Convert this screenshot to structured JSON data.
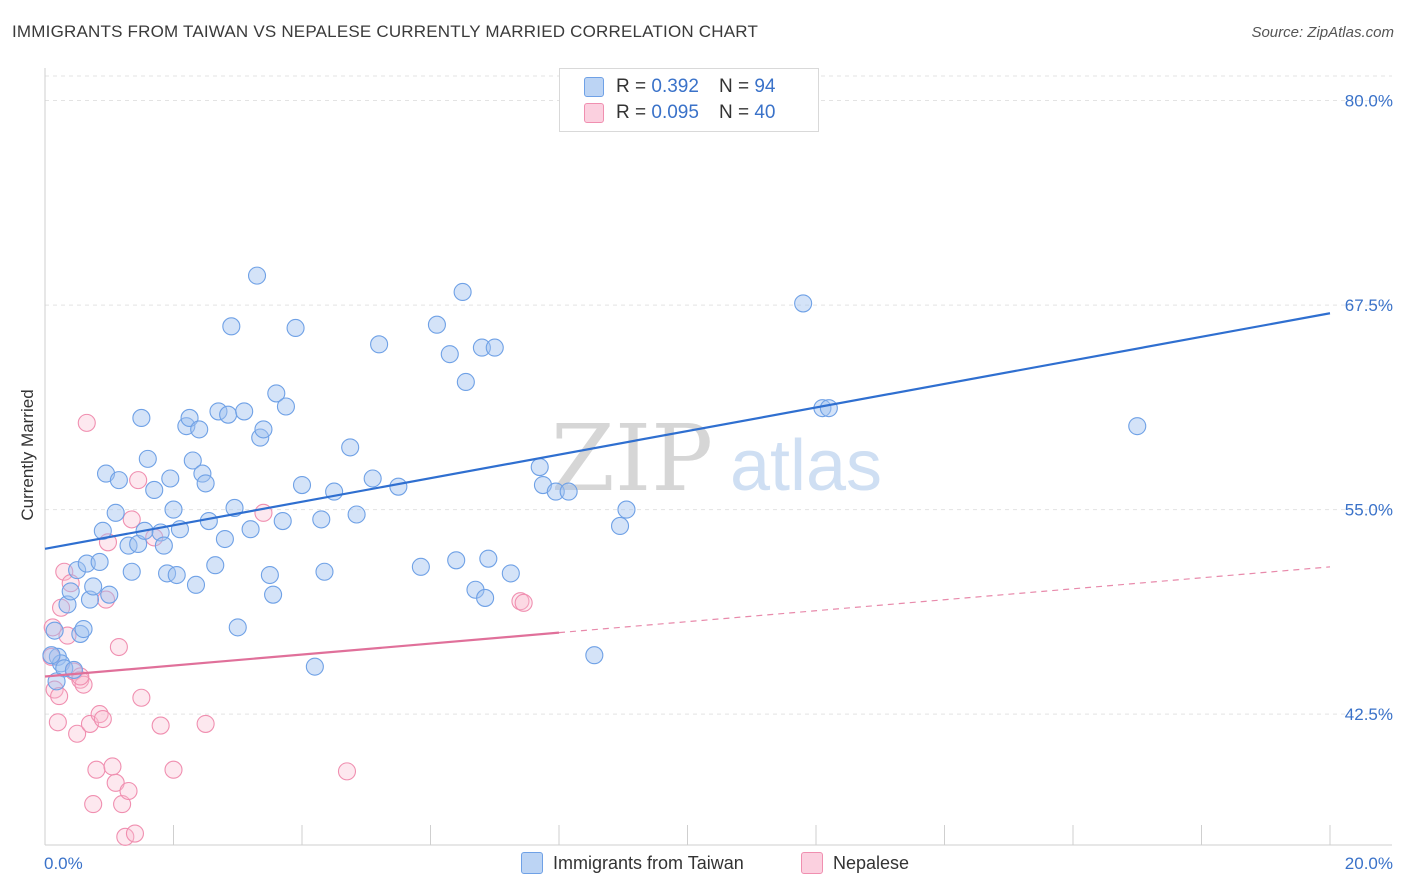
{
  "title": "IMMIGRANTS FROM TAIWAN VS NEPALESE CURRENTLY MARRIED CORRELATION CHART",
  "source": "Source: ZipAtlas.com",
  "watermark": {
    "zip": "ZIP",
    "atlas": "atlas"
  },
  "legend": {
    "rows": [
      {
        "r_label": "R =",
        "r_value": "0.392",
        "n_label": "N =",
        "n_value": "94",
        "color": "#6fa1e6"
      },
      {
        "r_label": "R =",
        "r_value": "0.095",
        "n_label": "N =",
        "n_value": "40",
        "color": "#f08fb0"
      }
    ]
  },
  "bottom_legend": [
    {
      "label": "Immigrants from Taiwan",
      "color": "#6fa1e6"
    },
    {
      "label": "Nepalese",
      "color": "#f08fb0"
    }
  ],
  "chart_data": {
    "type": "scatter",
    "title": "IMMIGRANTS FROM TAIWAN VS NEPALESE CURRENTLY MARRIED CORRELATION CHART",
    "xlabel": "",
    "ylabel": "Currently Married",
    "xlim": [
      0,
      20
    ],
    "ylim": [
      34.5,
      81.5
    ],
    "x_tick_labels": [
      "0.0%",
      "20.0%"
    ],
    "y_ticks": [
      42.5,
      55.0,
      67.5,
      80.0
    ],
    "y_tick_labels": [
      "42.5%",
      "55.0%",
      "67.5%",
      "80.0%"
    ],
    "grid": "horizontal dashed",
    "legend_position": "top-center",
    "series": [
      {
        "name": "Immigrants from Taiwan",
        "color": "#6fa1e6",
        "trend": {
          "x": [
            0,
            20
          ],
          "y": [
            52.6,
            67.0
          ]
        },
        "points": [
          [
            0.15,
            47.6
          ],
          [
            0.2,
            46.0
          ],
          [
            0.25,
            45.6
          ],
          [
            0.3,
            45.3
          ],
          [
            0.35,
            49.2
          ],
          [
            0.4,
            50.0
          ],
          [
            0.5,
            51.3
          ],
          [
            0.55,
            47.4
          ],
          [
            0.6,
            47.7
          ],
          [
            0.65,
            51.7
          ],
          [
            0.7,
            49.5
          ],
          [
            0.75,
            50.3
          ],
          [
            0.85,
            51.8
          ],
          [
            0.9,
            53.7
          ],
          [
            0.95,
            57.2
          ],
          [
            1.0,
            49.8
          ],
          [
            1.1,
            54.8
          ],
          [
            1.15,
            56.8
          ],
          [
            1.3,
            52.8
          ],
          [
            1.35,
            51.2
          ],
          [
            1.45,
            52.9
          ],
          [
            1.5,
            60.6
          ],
          [
            1.55,
            53.7
          ],
          [
            1.6,
            58.1
          ],
          [
            1.7,
            56.2
          ],
          [
            1.8,
            53.6
          ],
          [
            1.85,
            52.8
          ],
          [
            1.9,
            51.1
          ],
          [
            1.95,
            56.9
          ],
          [
            2.0,
            55.0
          ],
          [
            2.05,
            51.0
          ],
          [
            2.1,
            53.8
          ],
          [
            2.2,
            60.1
          ],
          [
            2.25,
            60.6
          ],
          [
            2.3,
            58.0
          ],
          [
            2.35,
            50.4
          ],
          [
            2.4,
            59.9
          ],
          [
            2.45,
            57.2
          ],
          [
            2.5,
            56.6
          ],
          [
            2.55,
            54.3
          ],
          [
            2.65,
            51.6
          ],
          [
            2.7,
            61.0
          ],
          [
            2.8,
            53.2
          ],
          [
            2.85,
            60.8
          ],
          [
            2.9,
            66.2
          ],
          [
            2.95,
            55.1
          ],
          [
            3.0,
            47.8
          ],
          [
            3.1,
            61.0
          ],
          [
            3.2,
            53.8
          ],
          [
            3.3,
            69.3
          ],
          [
            3.35,
            59.4
          ],
          [
            3.4,
            59.9
          ],
          [
            3.5,
            51.0
          ],
          [
            3.55,
            49.8
          ],
          [
            3.6,
            62.1
          ],
          [
            3.7,
            54.3
          ],
          [
            3.75,
            61.3
          ],
          [
            3.9,
            66.1
          ],
          [
            4.0,
            56.5
          ],
          [
            4.2,
            45.4
          ],
          [
            4.3,
            54.4
          ],
          [
            4.35,
            51.2
          ],
          [
            4.5,
            56.1
          ],
          [
            4.75,
            58.8
          ],
          [
            4.85,
            54.7
          ],
          [
            5.1,
            56.9
          ],
          [
            5.2,
            65.1
          ],
          [
            5.5,
            56.4
          ],
          [
            5.85,
            51.5
          ],
          [
            6.1,
            66.3
          ],
          [
            6.3,
            64.5
          ],
          [
            6.4,
            51.9
          ],
          [
            6.5,
            68.3
          ],
          [
            6.55,
            62.8
          ],
          [
            6.7,
            50.1
          ],
          [
            6.8,
            64.9
          ],
          [
            6.85,
            49.6
          ],
          [
            6.9,
            52.0
          ],
          [
            7.0,
            64.9
          ],
          [
            7.25,
            51.1
          ],
          [
            7.7,
            57.6
          ],
          [
            7.75,
            56.5
          ],
          [
            7.95,
            56.1
          ],
          [
            8.15,
            56.1
          ],
          [
            8.55,
            46.1
          ],
          [
            8.95,
            54.0
          ],
          [
            9.05,
            55.0
          ],
          [
            11.8,
            67.6
          ],
          [
            12.1,
            61.2
          ],
          [
            12.2,
            61.2
          ],
          [
            17.0,
            60.1
          ],
          [
            0.1,
            46.1
          ],
          [
            0.18,
            44.5
          ],
          [
            0.45,
            45.2
          ]
        ]
      },
      {
        "name": "Nepalese",
        "color": "#f08fb0",
        "trend": {
          "x": [
            0,
            20
          ],
          "y": [
            44.8,
            51.5
          ]
        },
        "points": [
          [
            0.1,
            46.0
          ],
          [
            0.15,
            44.0
          ],
          [
            0.2,
            42.0
          ],
          [
            0.25,
            49.0
          ],
          [
            0.3,
            51.2
          ],
          [
            0.35,
            47.3
          ],
          [
            0.4,
            50.5
          ],
          [
            0.45,
            45.1
          ],
          [
            0.5,
            41.3
          ],
          [
            0.55,
            44.6
          ],
          [
            0.6,
            44.3
          ],
          [
            0.65,
            60.3
          ],
          [
            0.7,
            41.9
          ],
          [
            0.75,
            37.0
          ],
          [
            0.8,
            39.1
          ],
          [
            0.85,
            42.5
          ],
          [
            0.9,
            42.2
          ],
          [
            0.95,
            49.5
          ],
          [
            0.98,
            53.0
          ],
          [
            1.05,
            39.3
          ],
          [
            1.1,
            38.3
          ],
          [
            1.15,
            46.6
          ],
          [
            1.2,
            37.0
          ],
          [
            1.25,
            35.0
          ],
          [
            1.3,
            37.8
          ],
          [
            1.35,
            54.4
          ],
          [
            1.4,
            35.2
          ],
          [
            1.45,
            56.8
          ],
          [
            1.5,
            43.5
          ],
          [
            1.7,
            53.3
          ],
          [
            1.8,
            41.8
          ],
          [
            2.0,
            39.1
          ],
          [
            2.5,
            41.9
          ],
          [
            3.4,
            54.8
          ],
          [
            4.7,
            39.0
          ],
          [
            7.4,
            49.4
          ],
          [
            7.45,
            49.3
          ],
          [
            0.12,
            47.8
          ],
          [
            0.22,
            43.6
          ],
          [
            0.55,
            44.8
          ]
        ]
      }
    ]
  }
}
